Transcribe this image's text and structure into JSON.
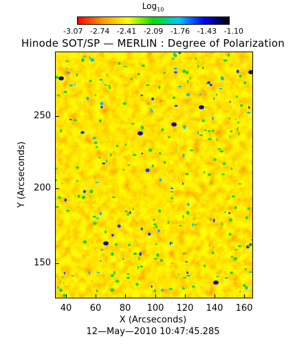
{
  "colorbar": {
    "label_main": "Log",
    "label_sub": "10",
    "ticks": [
      "-3.07",
      "-2.74",
      "-2.41",
      "-2.09",
      "-1.76",
      "-1.43",
      "-1.10"
    ],
    "colors": [
      "#ff0000",
      "#ff9a00",
      "#ffff00",
      "#00e000",
      "#00c8ff",
      "#0000ff",
      "#000000"
    ]
  },
  "title": "Hinode SOT/SP — MERLIN : Degree of Polarization",
  "axes": {
    "xlabel": "X (Arcseconds)",
    "ylabel": "Y (Arcseconds)",
    "xticks": [
      "40",
      "60",
      "80",
      "100",
      "120",
      "140",
      "160"
    ],
    "yticks": [
      "250",
      "200",
      "150"
    ],
    "xlim": [
      32,
      165
    ],
    "ylim": [
      127,
      290
    ]
  },
  "timestamp": "12—May—2010 10:47:45.285",
  "chart_data": {
    "type": "heatmap",
    "title": "Hinode SOT/SP — MERLIN : Degree of Polarization",
    "xlabel": "X (Arcseconds)",
    "ylabel": "Y (Arcseconds)",
    "xlim": [
      32,
      165
    ],
    "ylim": [
      127,
      290
    ],
    "colorbar_range": [
      -3.07,
      -1.1
    ],
    "colorbar_label": "Log10"
  }
}
